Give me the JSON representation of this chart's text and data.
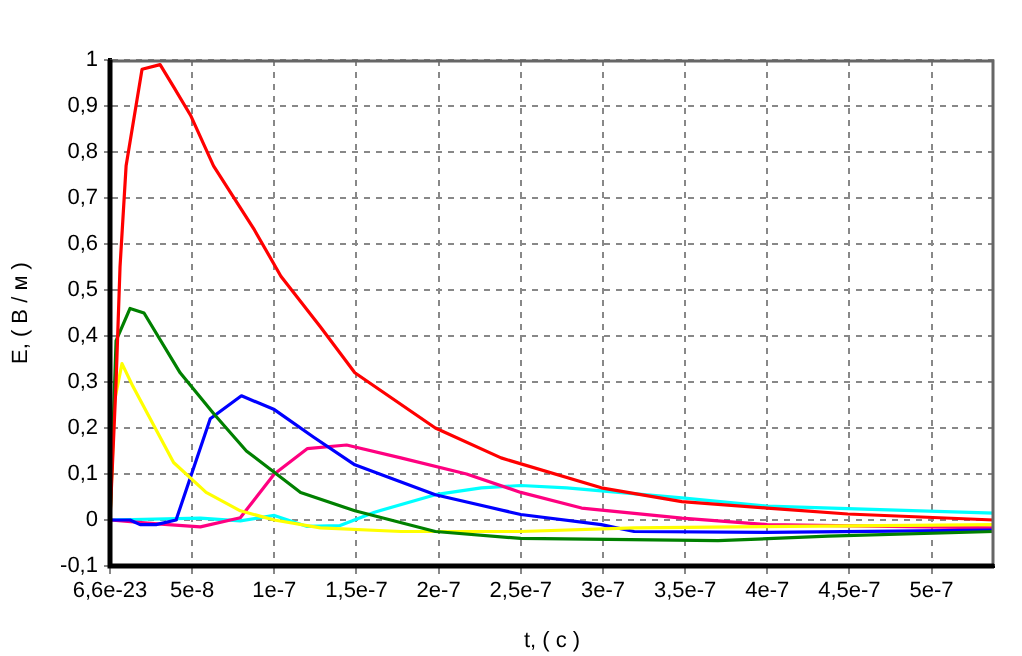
{
  "chart_data": {
    "type": "line",
    "xlabel": "t, ( с )",
    "ylabel": "E, ( В / м )",
    "xlim": [
      6.6e-23,
      5.38e-07
    ],
    "ylim": [
      -0.1,
      1
    ],
    "xticks": [
      {
        "value": 6.6e-23,
        "label": "6,6e-23"
      },
      {
        "value": 5e-08,
        "label": "5e-8"
      },
      {
        "value": 1e-07,
        "label": "1e-7"
      },
      {
        "value": 1.5e-07,
        "label": "1,5e-7"
      },
      {
        "value": 2e-07,
        "label": "2e-7"
      },
      {
        "value": 2.5e-07,
        "label": "2,5e-7"
      },
      {
        "value": 3e-07,
        "label": "3e-7"
      },
      {
        "value": 3.5e-07,
        "label": "3,5e-7"
      },
      {
        "value": 4e-07,
        "label": "4e-7"
      },
      {
        "value": 4.5e-07,
        "label": "4,5e-7"
      },
      {
        "value": 5e-07,
        "label": "5e-7"
      }
    ],
    "yticks": [
      {
        "value": -0.1,
        "label": "-0,1"
      },
      0,
      {
        "value": 0.1,
        "label": "0,1"
      },
      {
        "value": 0.2,
        "label": "0,2"
      },
      {
        "value": 0.3,
        "label": "0,3"
      },
      {
        "value": 0.4,
        "label": "0,4"
      },
      {
        "value": 0.5,
        "label": "0,5"
      },
      {
        "value": 0.6,
        "label": "0,6"
      },
      {
        "value": 0.7,
        "label": "0,7"
      },
      {
        "value": 0.8,
        "label": "0,8"
      },
      {
        "value": 0.9,
        "label": "0,9"
      },
      1
    ],
    "grid": true,
    "series": [
      {
        "color": "#ff0000",
        "x": [
          6.6e-23,
          3.7e-09,
          6.1e-09,
          9.8e-09,
          1.95e-08,
          3.05e-08,
          3.9e-08,
          4.9e-08,
          6.3e-08,
          8.8e-08,
          1.04e-07,
          1.28e-07,
          1.49e-07,
          1.98e-07,
          2.38e-07,
          2.99e-07,
          3.48e-07,
          4e-07,
          4.49e-07,
          5.38e-07
        ],
        "values": [
          0,
          0.3,
          0.55,
          0.77,
          0.98,
          0.99,
          0.94,
          0.88,
          0.77,
          0.63,
          0.53,
          0.42,
          0.32,
          0.2,
          0.135,
          0.07,
          0.04,
          0.026,
          0.013,
          0.0
        ]
      },
      {
        "color": "#008000",
        "x": [
          6.6e-23,
          3.7e-09,
          1.22e-08,
          2.07e-08,
          4.27e-08,
          6.34e-08,
          8.3e-08,
          1.16e-07,
          1.49e-07,
          1.98e-07,
          2.5e-07,
          3.7e-07,
          4.37e-07,
          5.38e-07
        ],
        "values": [
          0,
          0.39,
          0.46,
          0.45,
          0.32,
          0.23,
          0.15,
          0.06,
          0.02,
          -0.025,
          -0.04,
          -0.045,
          -0.035,
          -0.025
        ]
      },
      {
        "color": "#ffff00",
        "x": [
          6.6e-23,
          2.8e-09,
          7.3e-09,
          1.4e-08,
          3.87e-08,
          5.85e-08,
          7.93e-08,
          1e-07,
          1.28e-07,
          1.77e-07,
          2.5e-07,
          3.19e-07,
          5.38e-07
        ],
        "values": [
          0,
          0.26,
          0.34,
          0.29,
          0.125,
          0.06,
          0.02,
          0.0,
          -0.017,
          -0.025,
          -0.025,
          -0.017,
          -0.01
        ]
      },
      {
        "color": "#0000ff",
        "x": [
          6.6e-23,
          1.22e-08,
          1.83e-08,
          2.8e-08,
          4.02e-08,
          6.1e-08,
          8e-08,
          1e-07,
          1.24e-07,
          1.49e-07,
          1.98e-07,
          2.5e-07,
          2.99e-07,
          3.19e-07,
          4e-07,
          5.38e-07
        ],
        "values": [
          0,
          0,
          -0.01,
          -0.01,
          0,
          0.22,
          0.27,
          0.24,
          0.18,
          0.12,
          0.055,
          0.012,
          -0.01,
          -0.025,
          -0.027,
          -0.022
        ]
      },
      {
        "color": "#ff0080",
        "x": [
          6.6e-23,
          2.68e-08,
          5.5e-08,
          7.93e-08,
          1e-07,
          1.2e-07,
          1.44e-07,
          1.77e-07,
          2.17e-07,
          2.5e-07,
          2.87e-07,
          3.48e-07,
          4e-07,
          5.38e-07
        ],
        "values": [
          0,
          -0.008,
          -0.015,
          0.005,
          0.1,
          0.155,
          0.163,
          0.135,
          0.1,
          0.06,
          0.026,
          0.004,
          -0.01,
          -0.017
        ]
      },
      {
        "color": "#00ffff",
        "x": [
          6.6e-23,
          5.5e-08,
          7.93e-08,
          1e-07,
          1.2e-07,
          1.4e-07,
          1.61e-07,
          1.98e-07,
          2.26e-07,
          2.5e-07,
          2.78e-07,
          3.48e-07,
          4e-07,
          5.38e-07
        ],
        "values": [
          0,
          0.004,
          -0.002,
          0.01,
          -0.014,
          -0.012,
          0.017,
          0.055,
          0.07,
          0.075,
          0.07,
          0.048,
          0.03,
          0.015
        ]
      }
    ]
  }
}
